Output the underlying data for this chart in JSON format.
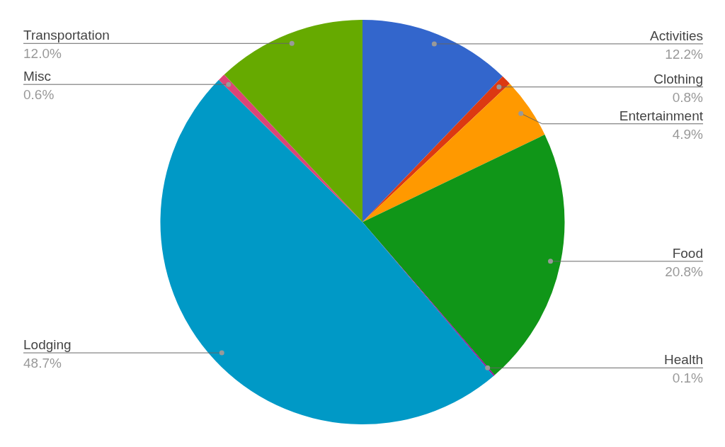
{
  "chart_data": {
    "type": "pie",
    "categories": [
      "Activities",
      "Clothing",
      "Entertainment",
      "Food",
      "Health",
      "Lodging",
      "Misc",
      "Transportation"
    ],
    "values": [
      12.2,
      0.8,
      4.9,
      20.8,
      0.1,
      48.7,
      0.6,
      12.0
    ],
    "value_labels": [
      "12.2%",
      "0.8%",
      "4.9%",
      "20.8%",
      "0.1%",
      "48.7%",
      "0.6%",
      "12.0%"
    ],
    "colors": [
      "#3366cc",
      "#dc3912",
      "#ff9900",
      "#109618",
      "#990099",
      "#0099c6",
      "#dd4477",
      "#66aa00"
    ]
  }
}
